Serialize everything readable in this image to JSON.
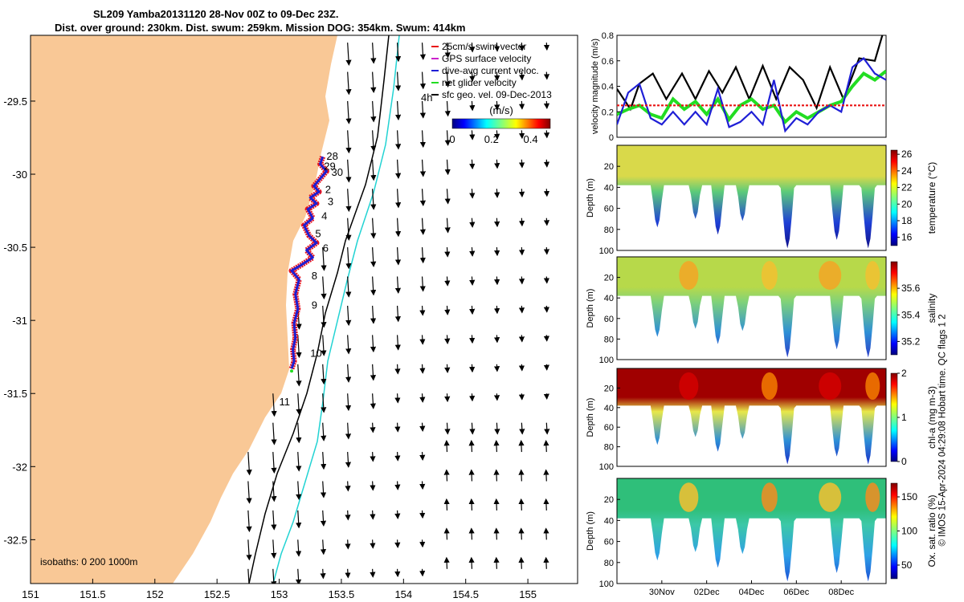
{
  "header": {
    "title_line1": "SL209 Yamba20131120 28-Nov 00Z to 09-Dec 23Z.",
    "title_line2": "Dist. over ground: 230km. Dist. swum: 259km. Mission DOG: 354km. Swum: 414km"
  },
  "footer": {
    "stamp": "© IMOS 15-Apr-2024 04:29:08 Hobart time. QC flags 1  2"
  },
  "colors": {
    "land": "#F9C896",
    "track_red": "#E8141E",
    "track_blue": "#1E1ED2",
    "isobath_cyan": "#22D3D3",
    "velocity_black": "#000000",
    "velocity_green": "#22DD22",
    "velocity_blue": "#1F1FD6",
    "swim_red": "#E81414"
  },
  "chart_data": [
    {
      "type": "map",
      "name": "glider-track-map",
      "xlim": [
        151,
        155.4
      ],
      "ylim": [
        -32.8,
        -29.05
      ],
      "xticks": [
        "151",
        "151.5",
        "152",
        "152.5",
        "153",
        "153.5",
        "154",
        "154.5",
        "155"
      ],
      "yticks": [
        "-29.5",
        "-30",
        "-30.5",
        "-31",
        "-31.5",
        "-32",
        "-32.5"
      ],
      "legend": [
        {
          "label": "25cm/s swim vector",
          "color": "#E81414"
        },
        {
          "label": "GPS surface velocity",
          "color": "#CC22CC"
        },
        {
          "label": "dive-avg current veloc.",
          "color": "#1F1FD6"
        },
        {
          "label": "net glider velocity",
          "color": "#22DD22"
        },
        {
          "label": "sfc geo. vel. 09-Dec-2013",
          "color": "#000000"
        }
      ],
      "colorbar": {
        "label": "(m/s)",
        "ticks": [
          "0",
          "0.2",
          "0.4"
        ],
        "range": [
          0,
          0.5
        ]
      },
      "isobaths_label": "isobaths: 0   200  1000m",
      "day_labels": [
        {
          "text": "28",
          "lon": 153.38,
          "lat": -29.9
        },
        {
          "text": "29",
          "lon": 153.36,
          "lat": -29.97
        },
        {
          "text": "30",
          "lon": 153.42,
          "lat": -30.01
        },
        {
          "text": "2",
          "lon": 153.37,
          "lat": -30.13
        },
        {
          "text": "3",
          "lon": 153.39,
          "lat": -30.21
        },
        {
          "text": "4",
          "lon": 153.34,
          "lat": -30.31
        },
        {
          "text": "5",
          "lon": 153.29,
          "lat": -30.43
        },
        {
          "text": "6",
          "lon": 153.35,
          "lat": -30.53
        },
        {
          "text": "8",
          "lon": 153.26,
          "lat": -30.72
        },
        {
          "text": "9",
          "lon": 153.26,
          "lat": -30.92
        },
        {
          "text": "10",
          "lon": 153.25,
          "lat": -31.25
        },
        {
          "text": "11",
          "lon": 153.0,
          "lat": -31.58
        },
        {
          "text": "4h",
          "lon": 154.14,
          "lat": -29.5
        }
      ],
      "track": [
        [
          153.35,
          -29.88
        ],
        [
          153.33,
          -29.93
        ],
        [
          153.38,
          -29.98
        ],
        [
          153.32,
          -30.04
        ],
        [
          153.28,
          -30.08
        ],
        [
          153.32,
          -30.12
        ],
        [
          153.25,
          -30.16
        ],
        [
          153.3,
          -30.2
        ],
        [
          153.23,
          -30.24
        ],
        [
          153.27,
          -30.3
        ],
        [
          153.2,
          -30.35
        ],
        [
          153.24,
          -30.42
        ],
        [
          153.3,
          -30.47
        ],
        [
          153.22,
          -30.52
        ],
        [
          153.27,
          -30.57
        ],
        [
          153.18,
          -30.62
        ],
        [
          153.1,
          -30.66
        ],
        [
          153.16,
          -30.72
        ],
        [
          153.13,
          -30.82
        ],
        [
          153.15,
          -30.92
        ],
        [
          153.12,
          -31.02
        ],
        [
          153.13,
          -31.12
        ],
        [
          153.11,
          -31.2
        ],
        [
          153.12,
          -31.28
        ],
        [
          153.1,
          -31.33
        ]
      ]
    },
    {
      "type": "line",
      "name": "velocity-magnitude",
      "ylabel": "velocity magnitude (m/s)",
      "ylim": [
        0,
        0.8
      ],
      "yticks": [
        "0",
        "0.2",
        "0.4",
        "0.6",
        "0.8"
      ],
      "xlim": [
        28,
        40
      ],
      "series": [
        {
          "color": "#000000",
          "x": [
            28,
            28.6,
            29,
            29.6,
            30.2,
            30.9,
            31.5,
            32.1,
            32.7,
            33.3,
            33.9,
            34.5,
            35.1,
            35.7,
            36.3,
            36.9,
            37.5,
            38.1,
            38.8,
            39.5,
            40
          ],
          "values": [
            0.38,
            0.22,
            0.42,
            0.5,
            0.3,
            0.5,
            0.3,
            0.52,
            0.35,
            0.55,
            0.3,
            0.56,
            0.3,
            0.55,
            0.45,
            0.23,
            0.55,
            0.3,
            0.62,
            0.6,
            0.9
          ]
        },
        {
          "color": "#22DD22",
          "x": [
            28,
            28.5,
            29,
            29.5,
            30,
            30.5,
            31,
            31.5,
            32,
            32.5,
            33,
            33.5,
            34,
            34.5,
            35,
            35.5,
            36,
            36.5,
            37,
            37.5,
            38,
            38.5,
            39,
            39.5,
            40
          ],
          "values": [
            0.18,
            0.22,
            0.25,
            0.18,
            0.15,
            0.3,
            0.22,
            0.28,
            0.18,
            0.3,
            0.14,
            0.25,
            0.3,
            0.22,
            0.25,
            0.12,
            0.2,
            0.15,
            0.2,
            0.25,
            0.28,
            0.4,
            0.5,
            0.45,
            0.52
          ]
        },
        {
          "color": "#1F1FD6",
          "x": [
            28,
            28.5,
            29,
            29.5,
            30,
            30.5,
            31,
            31.5,
            32,
            32.5,
            33,
            33.5,
            34,
            34.5,
            35,
            35.5,
            36,
            36.5,
            37,
            37.5,
            38,
            38.5,
            39,
            39.5,
            40
          ],
          "values": [
            0.1,
            0.35,
            0.42,
            0.15,
            0.1,
            0.2,
            0.1,
            0.2,
            0.1,
            0.38,
            0.08,
            0.12,
            0.2,
            0.1,
            0.45,
            0.05,
            0.15,
            0.1,
            0.2,
            0.25,
            0.2,
            0.55,
            0.62,
            0.5,
            0.45
          ]
        },
        {
          "color": "#E81414",
          "x": [
            28,
            40
          ],
          "values": [
            0.25,
            0.25
          ]
        }
      ]
    },
    {
      "type": "heatmap",
      "name": "temperature-section",
      "ylabel": "Depth (m)",
      "clabel": "temperature (°C)",
      "ylim": [
        100,
        0
      ],
      "yticks": [
        "20",
        "40",
        "60",
        "80",
        "100"
      ],
      "cticks": [
        "16",
        "18",
        "20",
        "22",
        "24",
        "26"
      ],
      "crange": [
        15,
        26.5
      ]
    },
    {
      "type": "heatmap",
      "name": "salinity-section",
      "ylabel": "Depth (m)",
      "clabel": "salinity",
      "ylim": [
        100,
        0
      ],
      "yticks": [
        "20",
        "40",
        "60",
        "80",
        "100"
      ],
      "cticks": [
        "35.2",
        "35.4",
        "35.6"
      ],
      "crange": [
        35.1,
        35.8
      ]
    },
    {
      "type": "heatmap",
      "name": "chlorophyll-section",
      "ylabel": "Depth (m)",
      "clabel": "chl-a (mg m-3)",
      "ylim": [
        100,
        0
      ],
      "yticks": [
        "20",
        "40",
        "60",
        "80",
        "100"
      ],
      "cticks": [
        "0",
        "1",
        "2"
      ],
      "crange": [
        0,
        2
      ]
    },
    {
      "type": "heatmap",
      "name": "oxygen-section",
      "ylabel": "Depth (m)",
      "clabel": "Ox. sat. ratio (%)",
      "ylim": [
        100,
        0
      ],
      "yticks": [
        "20",
        "40",
        "60",
        "80",
        "100"
      ],
      "cticks": [
        "50",
        "100",
        "150"
      ],
      "crange": [
        30,
        170
      ]
    }
  ],
  "time_axis": {
    "xlim": [
      28,
      40
    ],
    "ticks": [
      {
        "label": "30Nov",
        "day": 30
      },
      {
        "label": "02Dec",
        "day": 32
      },
      {
        "label": "04Dec",
        "day": 34
      },
      {
        "label": "06Dec",
        "day": 36
      },
      {
        "label": "08Dec",
        "day": 38
      }
    ]
  }
}
